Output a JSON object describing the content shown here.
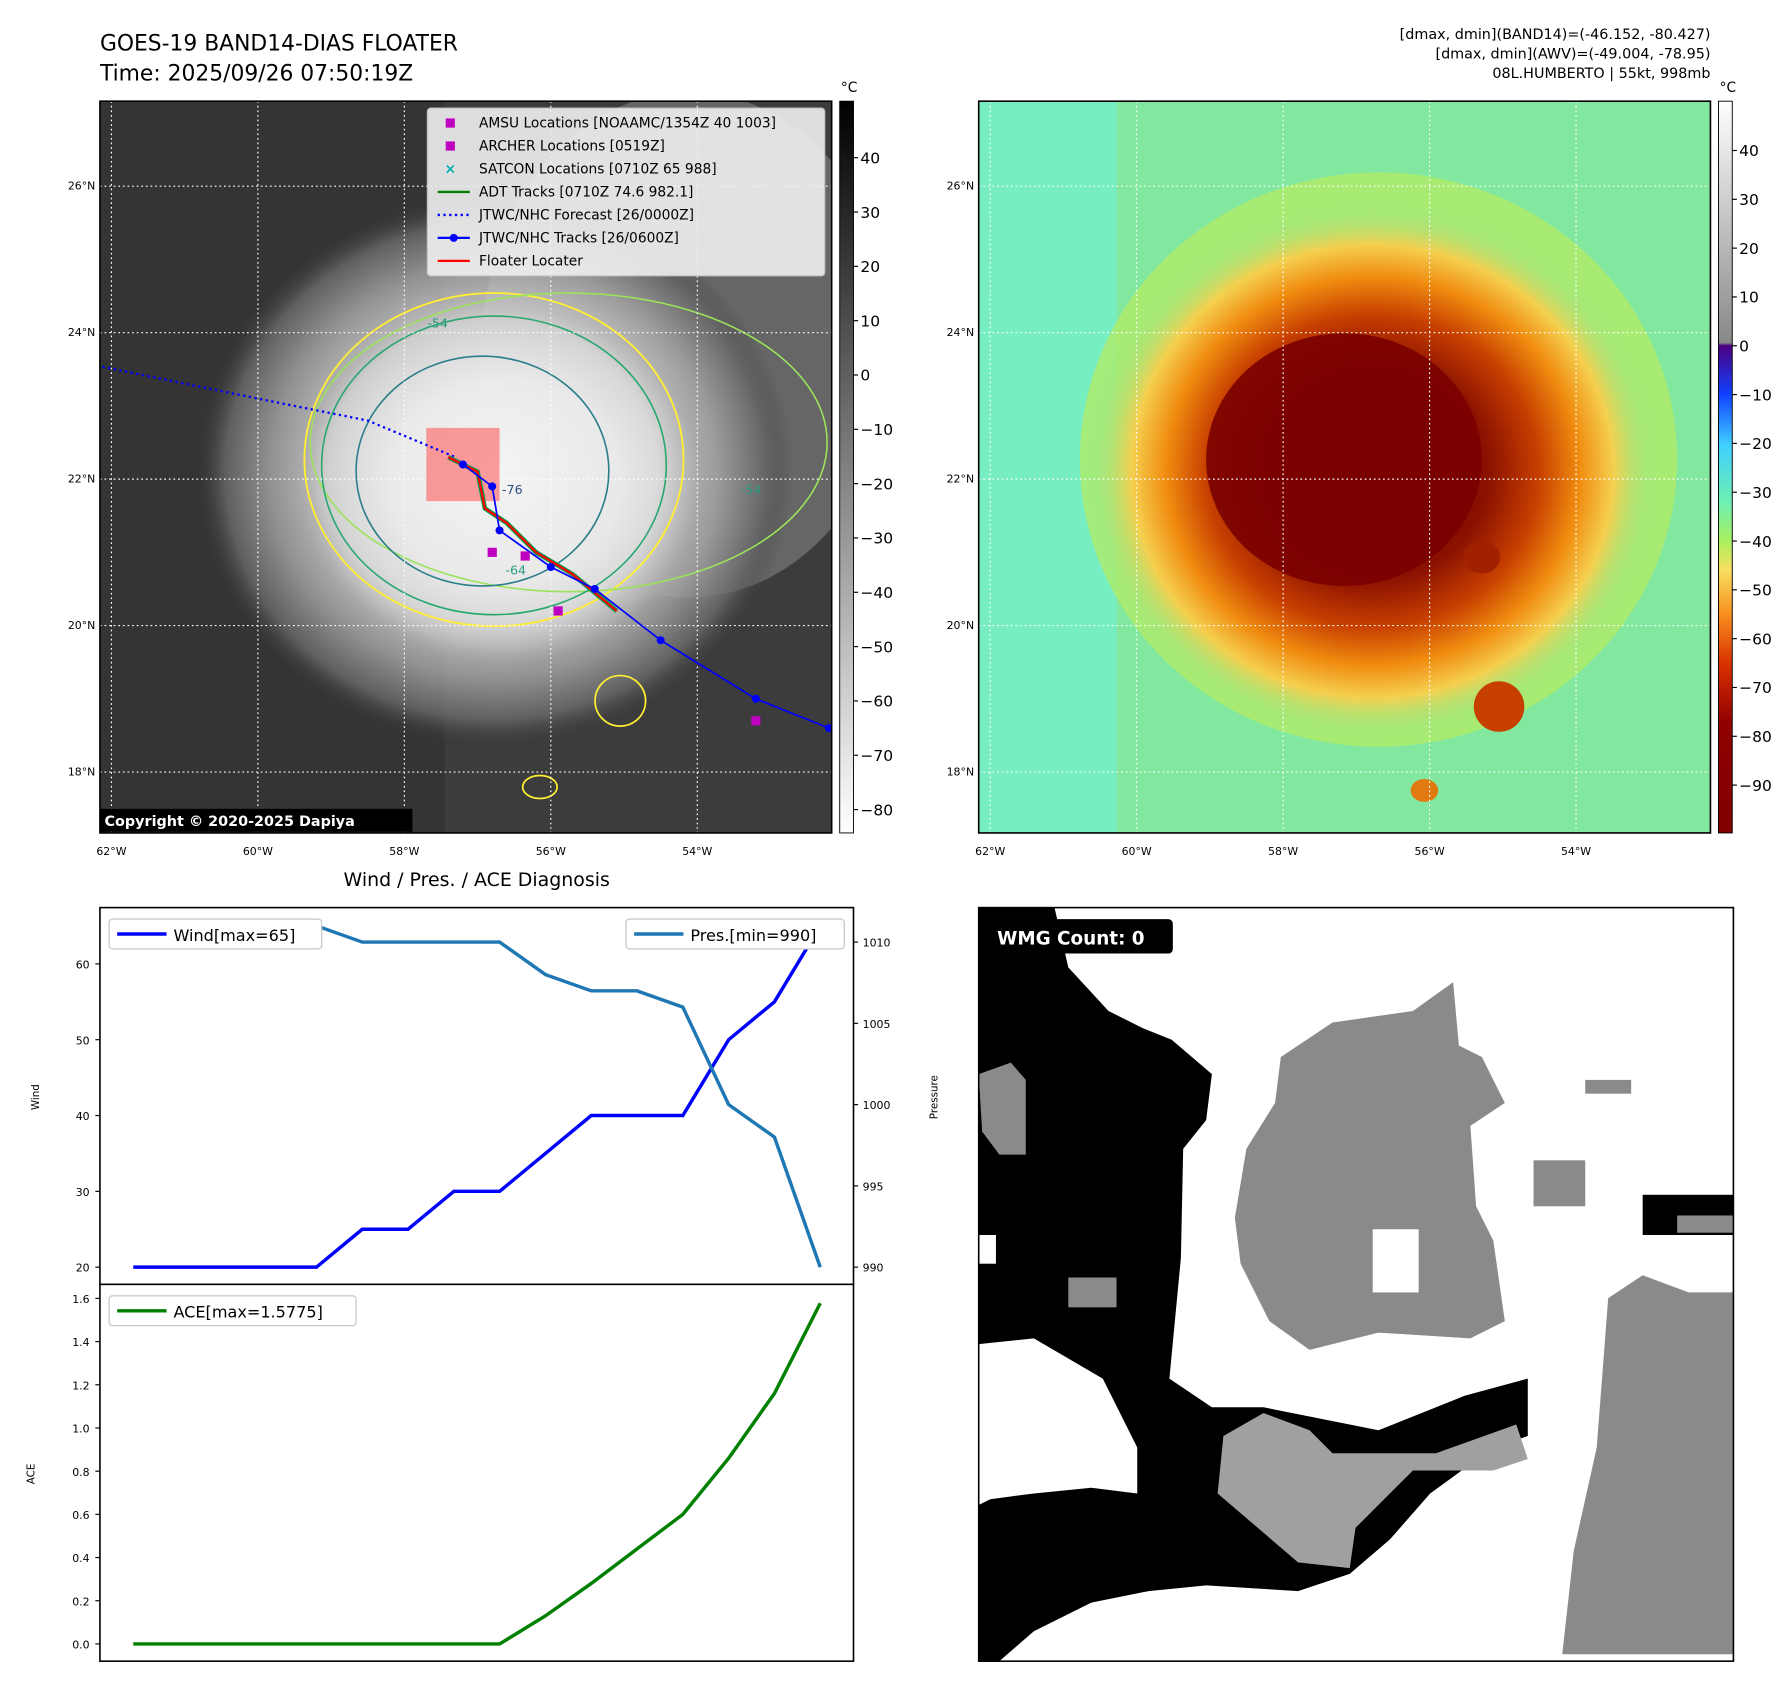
{
  "header": {
    "title": "GOES-19 BAND14-DIAS FLOATER",
    "time": "Time: 2025/09/26 07:50:19Z",
    "stats_band14": "[dmax, dmin](BAND14)=(-46.152, -80.427)",
    "stats_awv": "[dmax, dmin](AWV)=(-49.004, -78.95)",
    "storm": "08L.HUMBERTO | 55kt, 998mb"
  },
  "maps": {
    "lat_ticks": [
      {
        "v": 18,
        "label": "18°N"
      },
      {
        "v": 20,
        "label": "20°N"
      },
      {
        "v": 22,
        "label": "22°N"
      },
      {
        "v": 24,
        "label": "24°N"
      },
      {
        "v": 26,
        "label": "26°N"
      }
    ],
    "lon_ticks": [
      {
        "v": -62,
        "label": "62°W"
      },
      {
        "v": -60,
        "label": "60°W"
      },
      {
        "v": -58,
        "label": "58°W"
      },
      {
        "v": -56,
        "label": "56°W"
      },
      {
        "v": -54,
        "label": "54°W"
      }
    ],
    "copyright": "Copyright © 2020-2025 Dapiya",
    "contour_labels": [
      "-54",
      "-64",
      "-76",
      "-54"
    ],
    "legend": [
      {
        "label": "AMSU Locations [NOAAMC/1354Z 40 1003]",
        "marker": "square",
        "color": "#c000c0"
      },
      {
        "label": "ARCHER Locations [0519Z]",
        "marker": "square",
        "color": "#c000c0"
      },
      {
        "label": "SATCON Locations [0710Z 65 988]",
        "marker": "x",
        "color": "#00b0b0"
      },
      {
        "label": "ADT Tracks [0710Z 74.6 982.1]",
        "marker": "line",
        "color": "#008000"
      },
      {
        "label": "JTWC/NHC Forecast [26/0000Z]",
        "marker": "dotted",
        "color": "#0000ff"
      },
      {
        "label": "JTWC/NHC Tracks [26/0600Z]",
        "marker": "line-dot",
        "color": "#0000ff"
      },
      {
        "label": "Floater Locater",
        "marker": "line",
        "color": "#ff0000"
      }
    ],
    "forecast_track": [
      [
        -62.2,
        23.55
      ],
      [
        -60,
        23.1
      ],
      [
        -58.5,
        22.8
      ],
      [
        -57.3,
        22.3
      ]
    ],
    "jtwc_track": [
      [
        -57.2,
        22.2
      ],
      [
        -56.8,
        21.9
      ],
      [
        -56.7,
        21.3
      ],
      [
        -56.0,
        20.8
      ],
      [
        -55.4,
        20.5
      ],
      [
        -54.5,
        19.8
      ],
      [
        -53.2,
        19.0
      ],
      [
        -52.2,
        18.6
      ]
    ],
    "floater_track": [
      [
        -57.4,
        22.3
      ],
      [
        -57.0,
        22.1
      ],
      [
        -56.9,
        21.6
      ],
      [
        -56.6,
        21.4
      ],
      [
        -56.2,
        21.0
      ],
      [
        -55.7,
        20.7
      ],
      [
        -55.1,
        20.2
      ]
    ],
    "amsu_points": [
      [
        -56.8,
        21.0
      ],
      [
        -55.9,
        20.2
      ],
      [
        -53.2,
        18.7
      ]
    ],
    "archer_point": [
      -56.35,
      20.95
    ],
    "floater_box": {
      "lon": [
        -57.7,
        -56.7
      ],
      "lat": [
        21.7,
        22.7
      ]
    },
    "colorbar_left": {
      "unit": "°C",
      "min": -84.3,
      "max": 50.4,
      "ticks": [
        40,
        30,
        20,
        10,
        0,
        -10,
        -20,
        -30,
        -40,
        -50,
        -60,
        -70,
        -80
      ],
      "tick_labels": [
        "40",
        "30",
        "20",
        "10",
        "0",
        "−10",
        "−20",
        "−30",
        "−40",
        "−50",
        "−60",
        "−70",
        "−80"
      ]
    },
    "colorbar_right": {
      "unit": "°C",
      "min": -99.8,
      "max": 50.1,
      "ticks": [
        40,
        30,
        20,
        10,
        0,
        -10,
        -20,
        -30,
        -40,
        -50,
        -60,
        -70,
        -80,
        -90
      ],
      "tick_labels": [
        "40",
        "30",
        "20",
        "10",
        "0",
        "−10",
        "−20",
        "−30",
        "−40",
        "−50",
        "−60",
        "−70",
        "−80",
        "−90"
      ]
    }
  },
  "chart_data": [
    {
      "type": "line",
      "title": "Wind / Pres. / ACE Diagnosis",
      "x": [
        0,
        1,
        2,
        3,
        4,
        5,
        6,
        7,
        8,
        9,
        10,
        11,
        12,
        13,
        14,
        15
      ],
      "series": [
        {
          "name": "Wind[max=65]",
          "axis": "left",
          "color": "#0000ff",
          "values": [
            20,
            20,
            20,
            20,
            20,
            25,
            25,
            30,
            30,
            35,
            40,
            40,
            40,
            50,
            55,
            65
          ]
        },
        {
          "name": "Pres.[min=990]",
          "axis": "right",
          "color": "#1f77b4",
          "values": [
            1011,
            1011,
            1011,
            1011,
            1011,
            1010,
            1010,
            1010,
            1010,
            1008,
            1007,
            1007,
            1006,
            1000,
            998,
            990
          ]
        }
      ],
      "ylabel": "Wind",
      "y2label": "Pressure",
      "yticks": [
        20,
        30,
        40,
        50,
        60
      ],
      "y2ticks": [
        990,
        995,
        1000,
        1005,
        1010
      ]
    },
    {
      "type": "line",
      "x": [
        0,
        1,
        2,
        3,
        4,
        5,
        6,
        7,
        8,
        9,
        10,
        11,
        12,
        13,
        14,
        15
      ],
      "series": [
        {
          "name": "ACE[max=1.5775]",
          "color": "#008000",
          "values": [
            0,
            0,
            0,
            0,
            0,
            0,
            0,
            0,
            0,
            0.13,
            0.28,
            0.44,
            0.6,
            0.86,
            1.16,
            1.5775
          ]
        }
      ],
      "ylabel": "ACE",
      "yticks": [
        0,
        0.2,
        0.4,
        0.6,
        0.8,
        1.0,
        1.2,
        1.4,
        1.6
      ],
      "ytick_labels": [
        "0.0",
        "0.2",
        "0.4",
        "0.6",
        "0.8",
        "1.0",
        "1.2",
        "1.4",
        "1.6"
      ]
    }
  ],
  "wmg": {
    "label": "WMG Count: 0"
  }
}
